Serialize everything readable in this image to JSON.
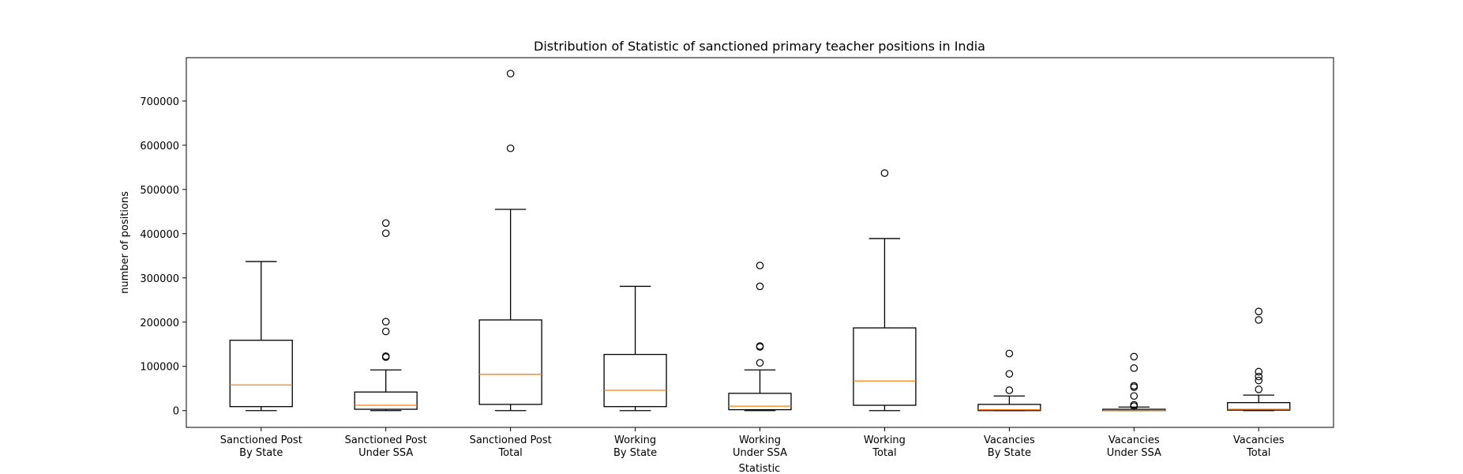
{
  "chart_data": {
    "type": "box",
    "title": "Distribution of Statistic of sanctioned primary teacher positions in India",
    "xlabel": "Statistic",
    "ylabel": "number of positions",
    "ylim": [
      -38000,
      798000
    ],
    "yticks": [
      0,
      100000,
      200000,
      300000,
      400000,
      500000,
      600000,
      700000
    ],
    "ytick_labels": [
      "0",
      "100000",
      "200000",
      "300000",
      "400000",
      "500000",
      "600000",
      "700000"
    ],
    "grid": false,
    "legend": "none",
    "colors": {
      "box": "#000000",
      "median": "#ff7f0e"
    },
    "categories": [
      [
        "Sanctioned Post",
        "By State"
      ],
      [
        "Sanctioned Post",
        "Under SSA"
      ],
      [
        "Sanctioned Post",
        "Total"
      ],
      [
        "Working",
        "By State"
      ],
      [
        "Working",
        "Under SSA"
      ],
      [
        "Working",
        "Total"
      ],
      [
        "Vacancies",
        "By State"
      ],
      [
        "Vacancies",
        "Under SSA"
      ],
      [
        "Vacancies",
        "Total"
      ]
    ],
    "boxes": [
      {
        "whislo": 0,
        "q1": 9000,
        "med": 58000,
        "q3": 159000,
        "whishi": 337000,
        "fliers": []
      },
      {
        "whislo": 0,
        "q1": 3000,
        "med": 12000,
        "q3": 42000,
        "whishi": 92000,
        "fliers": [
          121000,
          123000,
          179000,
          201000,
          401000,
          424000
        ]
      },
      {
        "whislo": 0,
        "q1": 14000,
        "med": 82000,
        "q3": 205000,
        "whishi": 455000,
        "fliers": [
          593000,
          762000
        ]
      },
      {
        "whislo": 0,
        "q1": 9000,
        "med": 46000,
        "q3": 127000,
        "whishi": 281000,
        "fliers": []
      },
      {
        "whislo": 0,
        "q1": 2000,
        "med": 10000,
        "q3": 39000,
        "whishi": 92000,
        "fliers": [
          108000,
          144000,
          146000,
          281000,
          328000
        ]
      },
      {
        "whislo": 0,
        "q1": 12000,
        "med": 67000,
        "q3": 187000,
        "whishi": 389000,
        "fliers": [
          537000
        ]
      },
      {
        "whislo": 0,
        "q1": 0,
        "med": 2000,
        "q3": 14000,
        "whishi": 33000,
        "fliers": [
          46000,
          83000,
          129000
        ]
      },
      {
        "whislo": 0,
        "q1": 0,
        "med": 0,
        "q3": 3000,
        "whishi": 8000,
        "fliers": [
          10000,
          13000,
          33000,
          53000,
          56000,
          96000,
          122000
        ]
      },
      {
        "whislo": 0,
        "q1": 1000,
        "med": 3000,
        "q3": 18000,
        "whishi": 35000,
        "fliers": [
          48000,
          68000,
          77000,
          88000,
          205000,
          224000
        ]
      }
    ]
  }
}
